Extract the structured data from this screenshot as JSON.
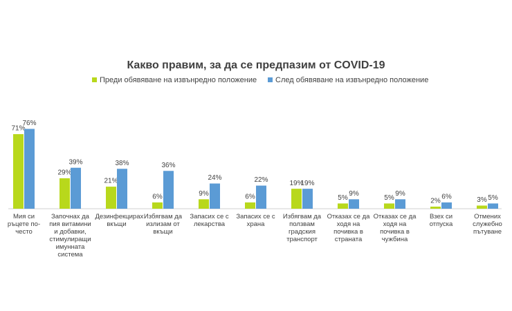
{
  "chart_data": {
    "type": "bar",
    "title": "Какво правим, за да се предпазим от COVID-19",
    "categories": [
      "Мия си ръцете по-често",
      "Започнах да пия витамини и добавки, стимулиращи имунната система",
      "Дезинфекцирах вкъщи",
      "Избягвам да излизам от вкъщи",
      "Запасих се с лекарства",
      "Запасих се с храна",
      "Избягвам да ползвам градския транспорт",
      "Отказах се да ходя на почивка в страната",
      "Отказах се да ходя на почивка в чужбина",
      "Взех си отпуска",
      "Отмених служебно пътуване"
    ],
    "series": [
      {
        "name": "Преди обявяване на извънредно положение",
        "color": "#b8d81c",
        "values": [
          71,
          29,
          21,
          6,
          9,
          6,
          19,
          5,
          5,
          2,
          3
        ],
        "value_labels": [
          "71%",
          "29%",
          "21%",
          "6%",
          "9%",
          "6%",
          "19%",
          "5%",
          "5%",
          "2%",
          "3%"
        ]
      },
      {
        "name": "След обявяване на извънредно положение",
        "color": "#5b9bd5",
        "values": [
          76,
          39,
          38,
          36,
          24,
          22,
          19,
          9,
          9,
          6,
          5
        ],
        "value_labels": [
          "76%",
          "39%",
          "38%",
          "36%",
          "24%",
          "22%",
          "19%",
          "9%",
          "9%",
          "6%",
          "5%"
        ]
      }
    ]
  }
}
